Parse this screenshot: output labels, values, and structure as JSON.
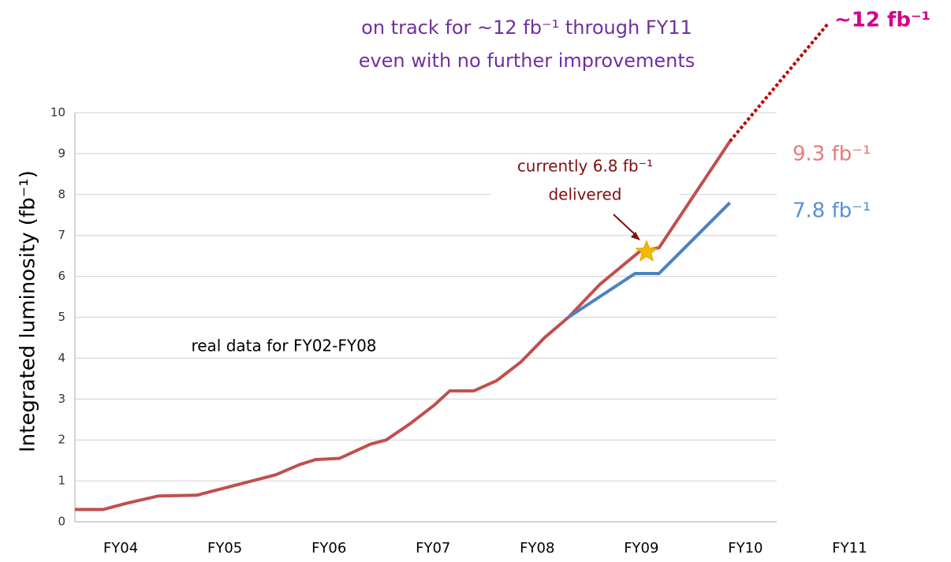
{
  "chart_data": {
    "type": "line",
    "title": [
      "on track for ~12 fb⁻¹ through FY11",
      "even with no further improvements"
    ],
    "ylabel": "Integrated luminosity (fb⁻¹)",
    "xlim": [
      2003.56,
      2010.3
    ],
    "xticks": [
      {
        "value": 2004,
        "label": "FY04"
      },
      {
        "value": 2005,
        "label": "FY05"
      },
      {
        "value": 2006,
        "label": "FY06"
      },
      {
        "value": 2007,
        "label": "FY07"
      },
      {
        "value": 2008,
        "label": "FY08"
      },
      {
        "value": 2009,
        "label": "FY09"
      },
      {
        "value": 2010,
        "label": "FY10"
      },
      {
        "value": 2011,
        "label": "FY11"
      }
    ],
    "ylim": [
      0,
      10
    ],
    "yticks": [
      0,
      1,
      2,
      3,
      4,
      5,
      6,
      7,
      8,
      9,
      10
    ],
    "grid": true,
    "series": [
      {
        "color": "#c0504d",
        "style": "solid",
        "x": [
          2003.56,
          2003.83,
          2004.05,
          2004.36,
          2004.73,
          2005.11,
          2005.49,
          2005.72,
          2005.87,
          2006.1,
          2006.4,
          2006.55,
          2006.78,
          2007.01,
          2007.16,
          2007.39,
          2007.61,
          2007.84,
          2008.07,
          2008.3,
          2008.6,
          2008.98,
          2009.17,
          2009.85
        ],
        "values": [
          0.3,
          0.3,
          0.45,
          0.63,
          0.65,
          0.9,
          1.15,
          1.4,
          1.52,
          1.55,
          1.9,
          2.0,
          2.4,
          2.85,
          3.2,
          3.2,
          3.45,
          3.9,
          4.5,
          5.0,
          5.8,
          6.6,
          6.7,
          9.3
        ]
      },
      {
        "color": "#4f81bd",
        "style": "solid",
        "x": [
          2008.3,
          2008.94,
          2009.17,
          2009.85
        ],
        "values": [
          5.0,
          6.07,
          6.07,
          7.8
        ]
      },
      {
        "color": "#c00000",
        "style": "dotted",
        "x": [
          2009.85,
          2010.8
        ],
        "values": [
          9.3,
          12.2
        ]
      }
    ],
    "star": {
      "x": 2009.05,
      "value": 6.6,
      "color": "#f5b800"
    },
    "annotations": [
      {
        "text": "real data for FY02-FY08",
        "color": "#000000"
      },
      {
        "text": "currently 6.8 fb⁻¹",
        "color": "#7f1010"
      },
      {
        "text": "delivered",
        "color": "#7f1010"
      },
      {
        "text": "9.3 fb⁻¹",
        "color": "#e87a7a"
      },
      {
        "text": "7.8 fb⁻¹",
        "color": "#5b8fd6"
      },
      {
        "text": "~12 fb⁻¹",
        "color": "#d6008a"
      }
    ]
  }
}
